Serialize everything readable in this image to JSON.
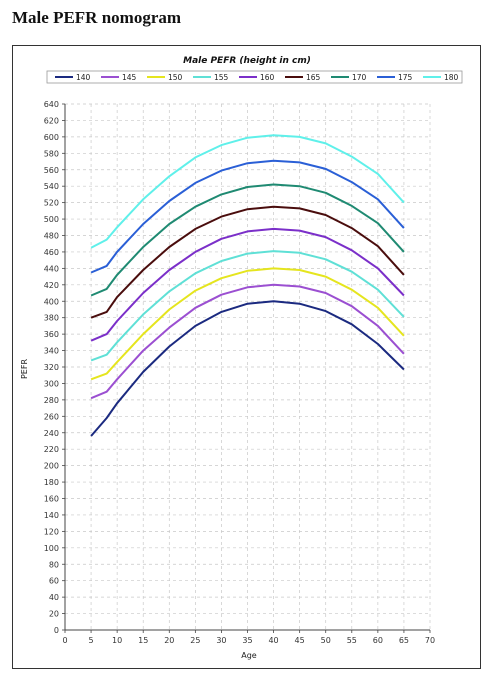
{
  "page": {
    "title": "Male PEFR nomogram"
  },
  "chart_data": {
    "type": "line",
    "title": "Male PEFR (height in cm)",
    "xlabel": "Age",
    "ylabel": "PEFR",
    "xlim": [
      0,
      70
    ],
    "ylim": [
      0,
      640
    ],
    "x_ticks": [
      0,
      5,
      10,
      15,
      20,
      25,
      30,
      35,
      40,
      45,
      50,
      55,
      60,
      65,
      70
    ],
    "y_ticks": [
      0,
      20,
      40,
      60,
      80,
      100,
      120,
      140,
      160,
      180,
      200,
      220,
      240,
      260,
      280,
      300,
      320,
      340,
      360,
      380,
      400,
      420,
      440,
      460,
      480,
      500,
      520,
      540,
      560,
      580,
      600,
      620,
      640
    ],
    "grid": true,
    "legend_position": "top",
    "x": [
      5,
      8,
      10,
      15,
      20,
      25,
      30,
      35,
      40,
      45,
      50,
      55,
      60,
      65
    ],
    "series": [
      {
        "name": "140",
        "color": "#1b2a80",
        "values": [
          236,
          258,
          276,
          314,
          345,
          370,
          387,
          397,
          400,
          397,
          388,
          372,
          348,
          317
        ]
      },
      {
        "name": "145",
        "color": "#9b4fd1",
        "values": [
          282,
          290,
          305,
          340,
          368,
          392,
          408,
          417,
          420,
          418,
          410,
          394,
          370,
          336
        ]
      },
      {
        "name": "150",
        "color": "#e5e51e",
        "values": [
          305,
          312,
          326,
          360,
          390,
          413,
          428,
          437,
          440,
          438,
          430,
          414,
          392,
          358
        ]
      },
      {
        "name": "155",
        "color": "#5fe0d6",
        "values": [
          328,
          335,
          350,
          384,
          412,
          434,
          449,
          458,
          461,
          459,
          451,
          436,
          414,
          381
        ]
      },
      {
        "name": "160",
        "color": "#7b2fc9",
        "values": [
          352,
          360,
          376,
          410,
          438,
          460,
          476,
          485,
          488,
          486,
          478,
          462,
          440,
          407
        ]
      },
      {
        "name": "165",
        "color": "#4a0d0d",
        "values": [
          380,
          387,
          405,
          438,
          466,
          488,
          503,
          512,
          515,
          513,
          505,
          489,
          467,
          432
        ]
      },
      {
        "name": "170",
        "color": "#1f8a72",
        "values": [
          407,
          415,
          432,
          466,
          494,
          515,
          530,
          539,
          542,
          540,
          532,
          516,
          495,
          460
        ]
      },
      {
        "name": "175",
        "color": "#2a5fd6",
        "values": [
          435,
          443,
          460,
          494,
          522,
          544,
          559,
          568,
          571,
          569,
          561,
          545,
          524,
          489
        ]
      },
      {
        "name": "180",
        "color": "#5ff0ea",
        "values": [
          465,
          475,
          490,
          524,
          552,
          575,
          590,
          599,
          602,
          600,
          592,
          576,
          555,
          520
        ]
      }
    ]
  }
}
